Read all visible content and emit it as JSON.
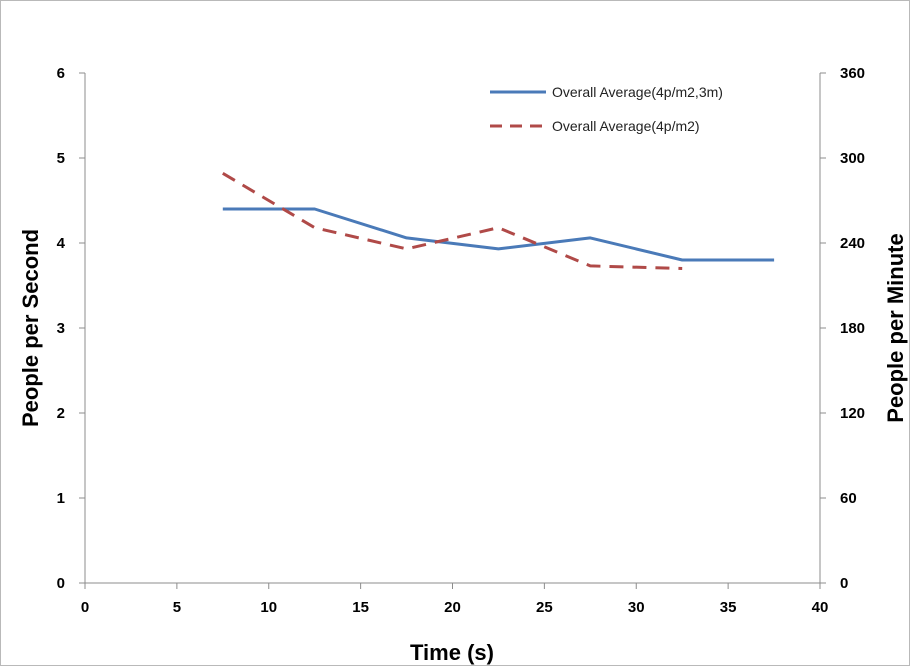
{
  "chart_data": {
    "type": "line",
    "xlabel": "Time (s)",
    "ylabel": "People per Second",
    "y2label": "People per Minute",
    "xlim": [
      0,
      40
    ],
    "ylim": [
      0,
      6
    ],
    "y2lim": [
      0,
      360
    ],
    "x_ticks": [
      "0",
      "5",
      "10",
      "15",
      "20",
      "25",
      "30",
      "35",
      "40"
    ],
    "y_ticks": [
      "0",
      "1",
      "2",
      "3",
      "4",
      "5",
      "6"
    ],
    "y2_ticks": [
      "0",
      "60",
      "120",
      "180",
      "240",
      "300",
      "360"
    ],
    "grid": false,
    "legend_position": "top-right",
    "series": [
      {
        "name": "Overall Average(4p/m2,3m)",
        "color": "#4a7ab8",
        "style": "solid",
        "x": [
          7.5,
          12.5,
          17.5,
          22.5,
          27.5,
          32.5,
          37.5
        ],
        "y": [
          4.4,
          4.4,
          4.06,
          3.93,
          4.06,
          3.8,
          3.8
        ]
      },
      {
        "name": "Overall Average(4p/m2)",
        "color": "#b04a48",
        "style": "dashed",
        "x": [
          7.5,
          12.5,
          17.5,
          22.5,
          27.5,
          32.5
        ],
        "y": [
          4.82,
          4.18,
          3.93,
          4.18,
          3.73,
          3.7
        ]
      }
    ]
  }
}
